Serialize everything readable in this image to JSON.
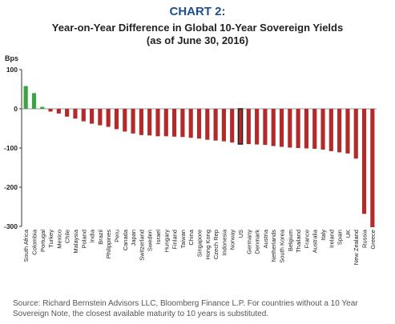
{
  "header": {
    "chart_number": "CHART 2:",
    "title_line1": "Year-on-Year Difference in Global 10-Year Sovereign Yields",
    "title_line2": "(as of June 30, 2016)"
  },
  "footer": {
    "source": "Source: Richard Bernstein Advisors LLC, Bloomberg Finance L.P. For countries without a 10 Year Sovereign Note, the closest available maturity to 10 years is substituted."
  },
  "colors": {
    "positive": "#3aa344",
    "negative": "#b22a2a",
    "highlight_outline": "#222222",
    "zero_line": "#9a9a9a",
    "axis": "#333333"
  },
  "chart_data": {
    "type": "bar",
    "title": "Year-on-Year Difference in Global 10-Year Sovereign Yields",
    "subtitle": "(as of June 30, 2016)",
    "unit_label": "Bps",
    "ylim": [
      -300,
      100
    ],
    "yticks": [
      100,
      0,
      -100,
      -200,
      -300
    ],
    "grid": false,
    "legend": "none",
    "highlighted_category": "US",
    "categories": [
      "South Africa",
      "Colombia",
      "Portugal",
      "Turkey",
      "Mexico",
      "Chile",
      "Malaysia",
      "Poland",
      "India",
      "Brazil",
      "Philippines",
      "Peru",
      "Canada",
      "Japan",
      "Switzerland",
      "Sweden",
      "Israel",
      "Hungary",
      "Finland",
      "Taiwan",
      "China",
      "Singapore",
      "Hong Kong",
      "Czech Rep",
      "Indonesia",
      "Norway",
      "US",
      "Germany",
      "Denmark",
      "Austria",
      "Netherlands",
      "South Korea",
      "Belgium",
      "Thailand",
      "France",
      "Australia",
      "Italy",
      "Ireland",
      "Spain",
      "UK",
      "New Zealand",
      "Russia",
      "Greece"
    ],
    "values": [
      58,
      40,
      5,
      -7,
      -12,
      -20,
      -25,
      -32,
      -38,
      -42,
      -46,
      -52,
      -58,
      -63,
      -67,
      -68,
      -70,
      -70,
      -71,
      -72,
      -74,
      -76,
      -79,
      -81,
      -83,
      -86,
      -90,
      -90,
      -91,
      -92,
      -95,
      -97,
      -99,
      -100,
      -101,
      -102,
      -104,
      -108,
      -111,
      -114,
      -127,
      -268,
      -302
    ]
  }
}
